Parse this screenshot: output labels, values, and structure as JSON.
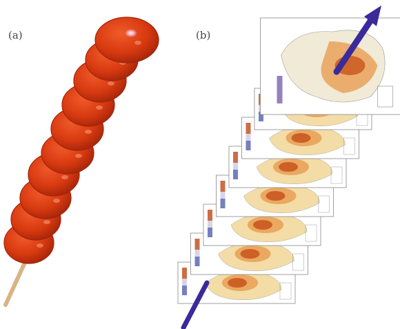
{
  "panels": {
    "a": {
      "label": "(a)"
    },
    "b": {
      "label": "(b)"
    }
  },
  "colors": {
    "candy": "#d83a10",
    "candy_dark": "#a3240a",
    "candy_highlight": "#f6c2e6",
    "stick": "#d9b483",
    "arrow": "#3b2a9a",
    "map_high": "#c8541c",
    "map_mid": "#e9a25a",
    "map_low": "#f3dca6",
    "map_land": "#f0ead6"
  }
}
